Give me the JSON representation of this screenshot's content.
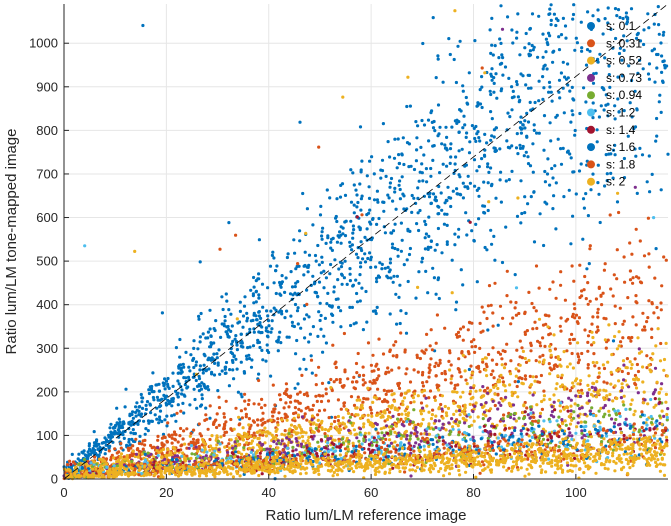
{
  "chart_data": {
    "type": "scatter",
    "title": "",
    "xlabel": "Ratio lum/LM reference image",
    "ylabel": "Ratio lum/LM tone-mapped image",
    "xlim": [
      0,
      118
    ],
    "ylim": [
      0,
      1090
    ],
    "xticks": [
      0,
      20,
      40,
      60,
      80,
      100
    ],
    "yticks": [
      0,
      100,
      200,
      300,
      400,
      500,
      600,
      700,
      800,
      900,
      1000
    ],
    "xtick_labels": [
      "0",
      "20",
      "40",
      "60",
      "80",
      "100"
    ],
    "ytick_labels": [
      "0",
      "100",
      "200",
      "300",
      "400",
      "500",
      "600",
      "700",
      "800",
      "900",
      "1000"
    ],
    "grid": true,
    "legend_position": "top-right",
    "reference_line": {
      "style": "dashed",
      "color": "#000000",
      "x": [
        0,
        118
      ],
      "y": [
        0,
        1090
      ]
    },
    "series": [
      {
        "name": "s: 0.1",
        "color": "#0072BD",
        "slope": 9.2,
        "spread": 0.2
      },
      {
        "name": "s: 0.31",
        "color": "#D95319",
        "slope": 3.0,
        "spread": 0.33
      },
      {
        "name": "s: 0.52",
        "color": "#EDB120",
        "slope": 1.9,
        "spread": 0.3
      },
      {
        "name": "s: 0.73",
        "color": "#7E2F8E",
        "slope": 1.35,
        "spread": 0.3
      },
      {
        "name": "s: 0.94",
        "color": "#77AC30",
        "slope": 1.1,
        "spread": 0.3
      },
      {
        "name": "s: 1.2",
        "color": "#4DBEEE",
        "slope": 0.95,
        "spread": 0.3
      },
      {
        "name": "s: 1.4",
        "color": "#A2142F",
        "slope": 0.85,
        "spread": 0.3
      },
      {
        "name": "s: 1.6",
        "color": "#0072BD",
        "slope": 0.75,
        "spread": 0.3
      },
      {
        "name": "s: 1.8",
        "color": "#D95319",
        "slope": 0.62,
        "spread": 0.3
      },
      {
        "name": "s: 2",
        "color": "#EDB120",
        "slope": 0.42,
        "spread": 0.4
      }
    ]
  }
}
